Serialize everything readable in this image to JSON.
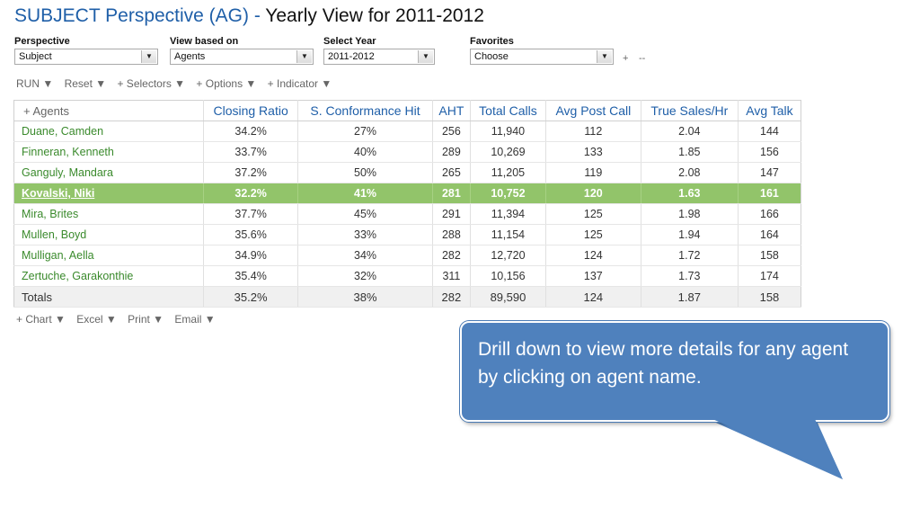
{
  "title": {
    "part1": "SUBJECT Perspective (AG) - ",
    "part2": "Yearly View for 2011-2012"
  },
  "filters": [
    {
      "label": "Perspective",
      "value": "Subject"
    },
    {
      "label": "View based on",
      "value": "Agents"
    },
    {
      "label": "Select Year",
      "value": "2011-2012"
    },
    {
      "label": "Favorites",
      "value": "Choose"
    }
  ],
  "favorites_extra": {
    "add": "+",
    "remove": "--"
  },
  "toolbar": [
    "RUN ▼",
    "Reset ▼",
    "+ Selectors ▼",
    "+ Options ▼",
    "+ Indicator ▼"
  ],
  "table": {
    "headers": [
      "+ Agents",
      "Closing Ratio",
      "S. Conformance Hit",
      "AHT",
      "Total Calls",
      "Avg Post Call",
      "True Sales/Hr",
      "Avg Talk"
    ],
    "rows": [
      [
        "Duane, Camden",
        "34.2%",
        "27%",
        "256",
        "11,940",
        "112",
        "2.04",
        "144"
      ],
      [
        "Finneran, Kenneth",
        "33.7%",
        "40%",
        "289",
        "10,269",
        "133",
        "1.85",
        "156"
      ],
      [
        "Ganguly, Mandara",
        "37.2%",
        "50%",
        "265",
        "11,205",
        "119",
        "2.08",
        "147"
      ],
      [
        "Kovalski, Niki",
        "32.2%",
        "41%",
        "281",
        "10,752",
        "120",
        "1.63",
        "161"
      ],
      [
        "Mira, Brites",
        "37.7%",
        "45%",
        "291",
        "11,394",
        "125",
        "1.98",
        "166"
      ],
      [
        "Mullen, Boyd",
        "35.6%",
        "33%",
        "288",
        "11,154",
        "125",
        "1.94",
        "164"
      ],
      [
        "Mulligan, Aella",
        "34.9%",
        "34%",
        "282",
        "12,720",
        "124",
        "1.72",
        "158"
      ],
      [
        "Zertuche, Garakonthie",
        "35.4%",
        "32%",
        "311",
        "10,156",
        "137",
        "1.73",
        "174"
      ]
    ],
    "selected_index": 3,
    "totals": [
      "Totals",
      "35.2%",
      "38%",
      "282",
      "89,590",
      "124",
      "1.87",
      "158"
    ]
  },
  "bottom_toolbar": [
    "+ Chart ▼",
    "Excel ▼",
    "Print ▼",
    "Email ▼"
  ],
  "callout": {
    "text": "Drill down to view more details for any agent by clicking on agent name."
  },
  "colors": {
    "title_blue": "#1f5fa8",
    "agent_green": "#3a8a2c",
    "selected_row": "#92c46a",
    "callout_blue": "#4f81bd"
  },
  "icons": {
    "dropdown": "chevron-down-icon"
  }
}
